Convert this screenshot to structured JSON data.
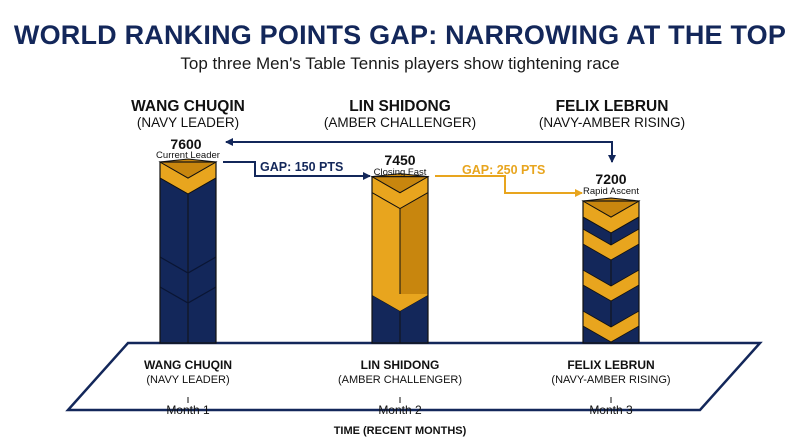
{
  "chart_data": {
    "type": "bar",
    "title": "WORLD RANKING POINTS GAP: NARROWING AT THE TOP",
    "subtitle": "Top three Men's Table Tennis players show tightening race",
    "xlabel": "TIME (RECENT MONTHS)",
    "ylabel": "",
    "categories": [
      "Month 1",
      "Month 2",
      "Month 3"
    ],
    "values": [
      7600,
      7450,
      7200
    ],
    "players": [
      {
        "name": "WANG CHUQIN",
        "role": "(NAVY LEADER)",
        "value_label": "7600",
        "note": "Current Leader",
        "style": "navy"
      },
      {
        "name": "LIN SHIDONG",
        "role": "(AMBER CHALLENGER)",
        "value_label": "7450",
        "note": "Closing Fast",
        "style": "amber"
      },
      {
        "name": "FELIX LEBRUN",
        "role": "(NAVY-AMBER RISING)",
        "value_label": "7200",
        "note": "Rapid Ascent",
        "style": "mixed"
      }
    ],
    "gaps": [
      {
        "label": "GAP: 150 PTS",
        "color": "#13275a"
      },
      {
        "label": "GAP: 250 PTS",
        "color": "#e8a51e"
      }
    ],
    "grid": false,
    "legend": "none",
    "colors": {
      "navy": "#13275a",
      "amber": "#e8a51e",
      "amber_dark": "#c8860e"
    }
  }
}
